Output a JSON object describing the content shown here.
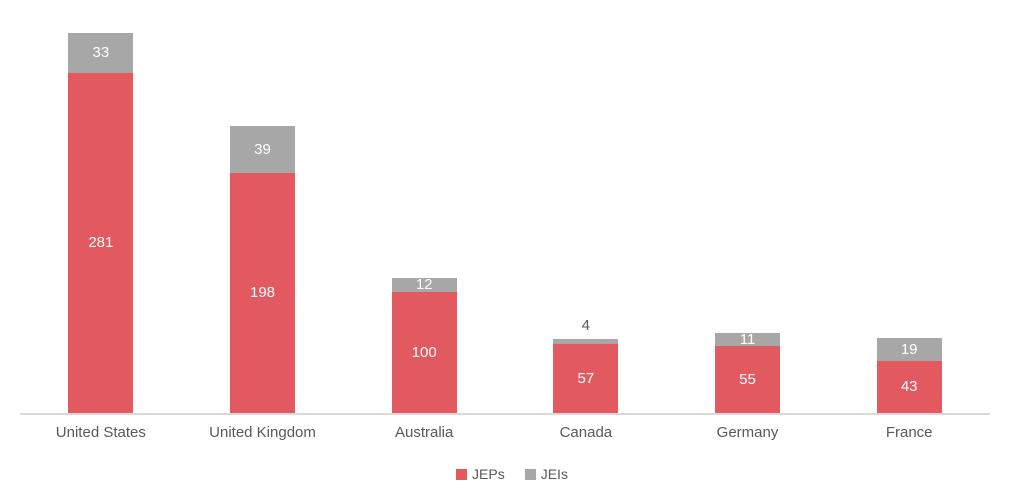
{
  "chart_data": {
    "type": "bar",
    "stacked": true,
    "title": "",
    "xlabel": "",
    "ylabel": "",
    "grid": false,
    "legend_position": "bottom",
    "categories": [
      "United States",
      "United Kingdom",
      "Australia",
      "Canada",
      "Germany",
      "France"
    ],
    "series": [
      {
        "name": "JEPs",
        "color": "#E25A5F",
        "values": [
          281,
          198,
          100,
          57,
          55,
          43
        ]
      },
      {
        "name": "JEIs",
        "color": "#A7A7A7",
        "values": [
          33,
          39,
          12,
          4,
          11,
          19
        ]
      }
    ],
    "value_labels": true,
    "value_label_color_inside": "#FFFFFF",
    "value_label_color_outside": "#595959",
    "axis_line_color": "#D9D9D9",
    "category_label_color": "#595959",
    "background_color": "#FFFFFF"
  }
}
